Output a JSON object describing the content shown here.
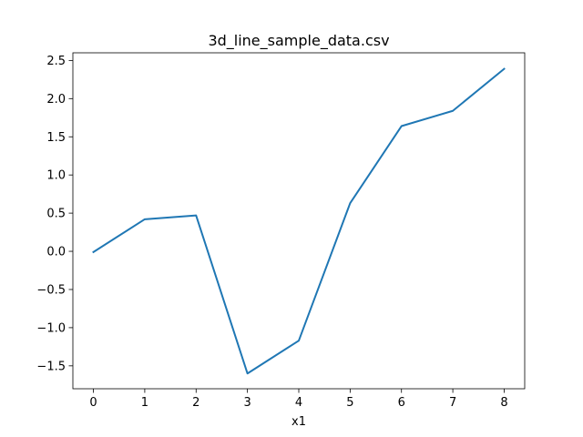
{
  "chart_data": {
    "type": "line",
    "title": "3d_line_sample_data.csv",
    "xlabel": "x1",
    "ylabel": "",
    "xlim": [
      -0.4,
      8.4
    ],
    "ylim": [
      -1.8,
      2.6
    ],
    "x_ticks": [
      0,
      1,
      2,
      3,
      4,
      5,
      6,
      7,
      8
    ],
    "x_tick_labels": [
      "0",
      "1",
      "2",
      "3",
      "4",
      "5",
      "6",
      "7",
      "8"
    ],
    "y_ticks": [
      -1.5,
      -1.0,
      -0.5,
      0.0,
      0.5,
      1.0,
      1.5,
      2.0,
      2.5
    ],
    "y_tick_labels": [
      "−1.5",
      "−1.0",
      "−0.5",
      "0.0",
      "0.5",
      "1.0",
      "1.5",
      "2.0",
      "2.5"
    ],
    "grid": false,
    "series": [
      {
        "color": "#1f77b4",
        "x": [
          0,
          1,
          2,
          3,
          4,
          5,
          6,
          7,
          8
        ],
        "y": [
          -0.01,
          0.42,
          0.47,
          -1.6,
          -1.17,
          0.63,
          1.64,
          1.84,
          2.39
        ]
      }
    ]
  }
}
